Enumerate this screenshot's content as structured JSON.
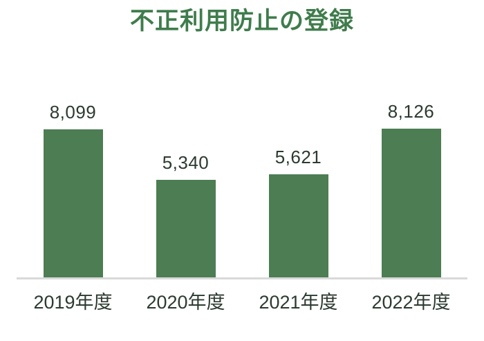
{
  "title": "不正利用防止の登録",
  "chart_data": {
    "type": "bar",
    "title": "不正利用防止の登録",
    "categories": [
      "2019年度",
      "2020年度",
      "2021年度",
      "2022年度"
    ],
    "values": [
      8099,
      5340,
      5621,
      8126
    ],
    "value_labels": [
      "8,099",
      "5,340",
      "5,621",
      "8,126"
    ],
    "xlabel": "",
    "ylabel": "",
    "ylim": [
      0,
      8126
    ],
    "grid": false,
    "legend": false,
    "colors": {
      "bar": "#4c7d53",
      "title": "#3f7c4c",
      "value_label": "#2c3a30",
      "category_label": "#2c3a30",
      "baseline": "#d9d9d9",
      "background": "#ffffff"
    }
  }
}
